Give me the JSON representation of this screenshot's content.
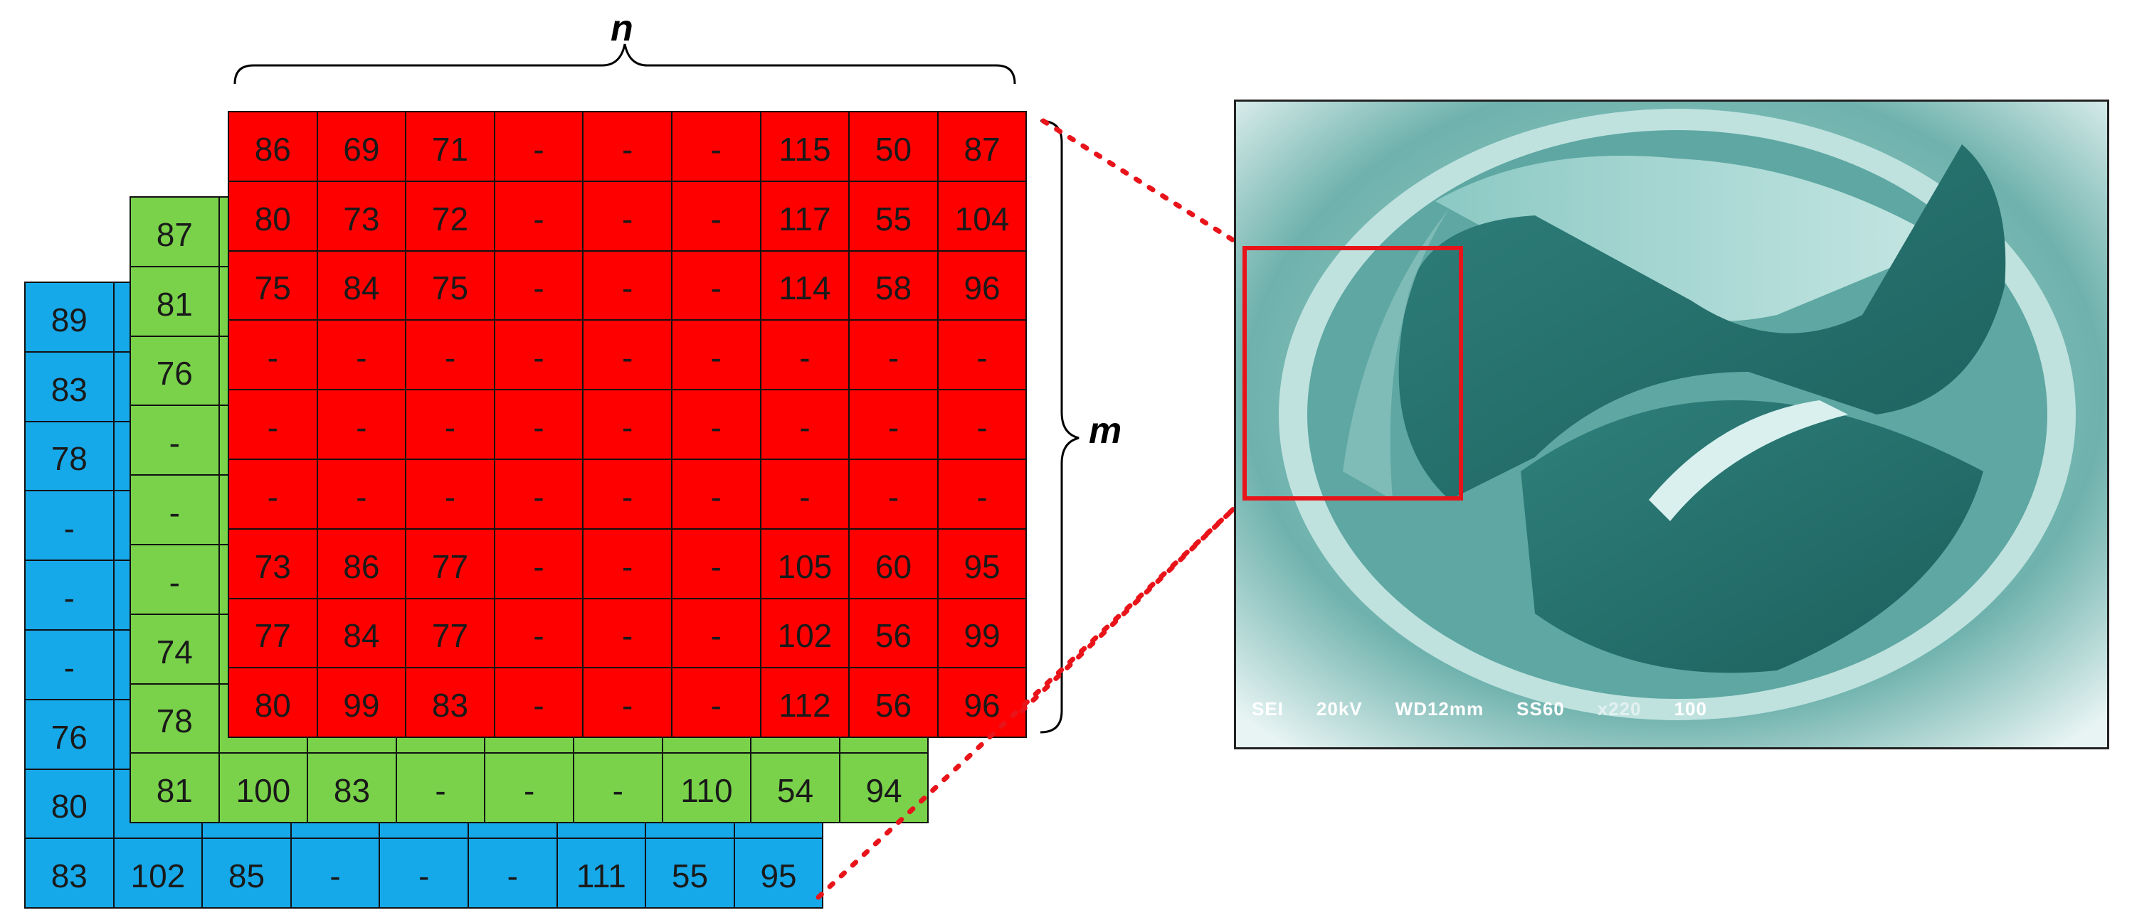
{
  "labels": {
    "n": "n",
    "m": "m"
  },
  "colors": {
    "blue_layer": "#16a9ea",
    "green_layer": "#79d24a",
    "red_layer": "#ff0000",
    "roi": "#e8141a"
  },
  "layers": {
    "blue": [
      [
        "89",
        "",
        "",
        "",
        "",
        "",
        "",
        "",
        ""
      ],
      [
        "83",
        "",
        "",
        "",
        "",
        "",
        "",
        "",
        ""
      ],
      [
        "78",
        "",
        "",
        "",
        "",
        "",
        "",
        "",
        ""
      ],
      [
        "-",
        "",
        "",
        "",
        "",
        "",
        "",
        "",
        ""
      ],
      [
        "-",
        "",
        "",
        "",
        "",
        "",
        "",
        "",
        ""
      ],
      [
        "-",
        "",
        "",
        "",
        "",
        "",
        "",
        "",
        ""
      ],
      [
        "76",
        "",
        "",
        "",
        "",
        "",
        "",
        "",
        ""
      ],
      [
        "80",
        "",
        "",
        "",
        "",
        "",
        "",
        "",
        ""
      ],
      [
        "83",
        "102",
        "85",
        "-",
        "-",
        "-",
        "111",
        "55",
        "95"
      ]
    ],
    "green": [
      [
        "87",
        "",
        "",
        "",
        "",
        "",
        "",
        "",
        ""
      ],
      [
        "81",
        "",
        "",
        "",
        "",
        "",
        "",
        "",
        ""
      ],
      [
        "76",
        "",
        "",
        "",
        "",
        "",
        "",
        "",
        ""
      ],
      [
        "-",
        "",
        "",
        "",
        "",
        "",
        "",
        "",
        ""
      ],
      [
        "-",
        "",
        "",
        "",
        "",
        "",
        "",
        "",
        ""
      ],
      [
        "-",
        "",
        "",
        "",
        "",
        "",
        "",
        "",
        ""
      ],
      [
        "74",
        "",
        "",
        "",
        "",
        "",
        "",
        "",
        ""
      ],
      [
        "78",
        "",
        "",
        "",
        "",
        "",
        "",
        "",
        ""
      ],
      [
        "81",
        "100",
        "83",
        "-",
        "-",
        "-",
        "110",
        "54",
        "94"
      ]
    ],
    "red": [
      [
        "86",
        "69",
        "71",
        "-",
        "-",
        "-",
        "115",
        "50",
        "87"
      ],
      [
        "80",
        "73",
        "72",
        "-",
        "-",
        "-",
        "117",
        "55",
        "104"
      ],
      [
        "75",
        "84",
        "75",
        "-",
        "-",
        "-",
        "114",
        "58",
        "96"
      ],
      [
        "-",
        "-",
        "-",
        "-",
        "-",
        "-",
        "-",
        "-",
        "-"
      ],
      [
        "-",
        "-",
        "-",
        "-",
        "-",
        "-",
        "-",
        "-",
        "-"
      ],
      [
        "-",
        "-",
        "-",
        "-",
        "-",
        "-",
        "-",
        "-",
        "-"
      ],
      [
        "73",
        "86",
        "77",
        "-",
        "-",
        "-",
        "105",
        "60",
        "95"
      ],
      [
        "77",
        "84",
        "77",
        "-",
        "-",
        "-",
        "102",
        "56",
        "99"
      ],
      [
        "80",
        "99",
        "83",
        "-",
        "-",
        "-",
        "112",
        "56",
        "96"
      ]
    ]
  },
  "sem_caption": [
    "SEI",
    "20kV",
    "WD12mm",
    "SS60",
    "x220",
    "100"
  ]
}
